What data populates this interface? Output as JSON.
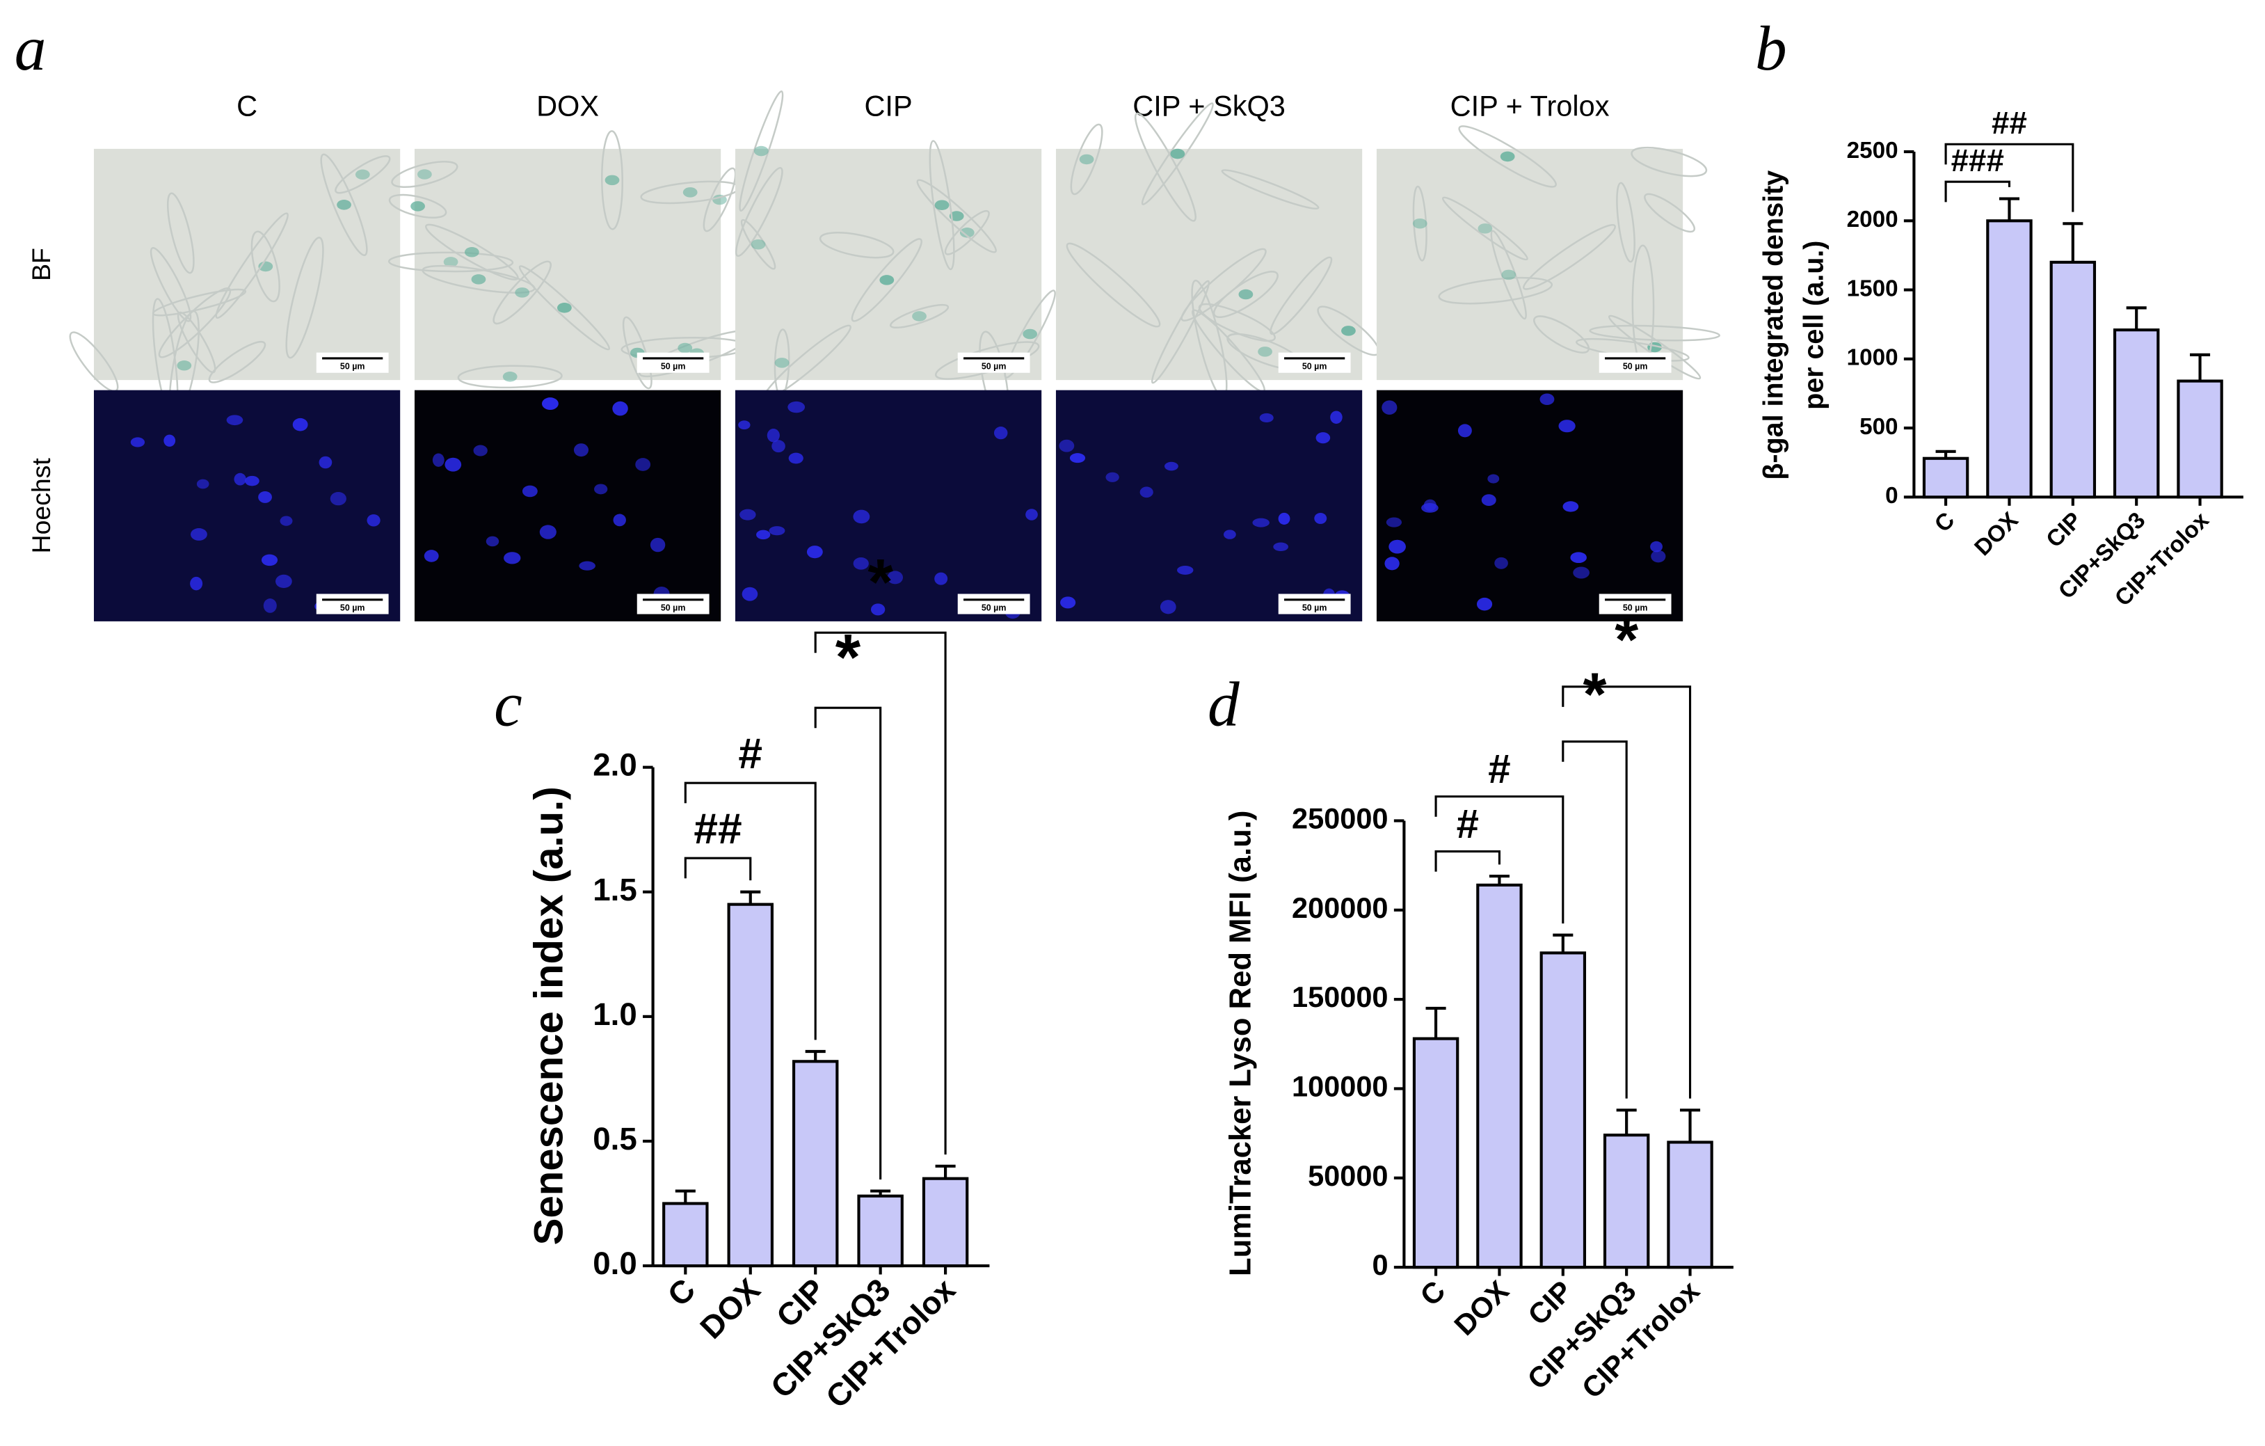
{
  "panel_a": {
    "label": "a",
    "columns": [
      "C",
      "DOX",
      "CIP",
      "CIP + SkQ3",
      "CIP + Trolox"
    ],
    "rows": [
      "BF",
      "Hoechst"
    ],
    "scale_bar": "50 µm"
  },
  "chart_data": [
    {
      "type": "bar",
      "panel_label": "b",
      "ylabel": [
        "β-gal integrated density",
        "per cell (a.u.)"
      ],
      "categories": [
        "C",
        "DOX",
        "CIP",
        "CIP+SkQ3",
        "CIP+Trolox"
      ],
      "values": [
        280,
        2000,
        1700,
        1210,
        840
      ],
      "errors": [
        50,
        160,
        280,
        160,
        190
      ],
      "color": "#c8c8f8",
      "ylim": [
        0,
        2500
      ],
      "yticks": [
        0,
        500,
        1000,
        1500,
        2000,
        2500
      ],
      "significance": [
        {
          "label": "###",
          "from": "C",
          "to": "DOX"
        },
        {
          "label": "##",
          "from": "C",
          "to": "CIP"
        }
      ]
    },
    {
      "type": "bar",
      "panel_label": "c",
      "ylabel": [
        "Senescence index (a.u.)"
      ],
      "categories": [
        "C",
        "DOX",
        "CIP",
        "CIP+SkQ3",
        "CIP+Trolox"
      ],
      "values": [
        0.25,
        1.45,
        0.82,
        0.28,
        0.35
      ],
      "errors": [
        0.05,
        0.05,
        0.04,
        0.02,
        0.05
      ],
      "color": "#c8c8f8",
      "ylim": [
        0,
        2
      ],
      "yticks": [
        {
          "value": 0,
          "label": "0.0"
        },
        0.5,
        {
          "value": 1,
          "label": "1.0"
        },
        1.5,
        {
          "value": 2,
          "label": "2.0"
        }
      ],
      "significance": [
        {
          "label": "##",
          "from": "C",
          "to": "DOX"
        },
        {
          "label": "#",
          "from": "C",
          "to": "CIP"
        },
        {
          "label": "*",
          "from": "CIP",
          "to": "CIP+SkQ3"
        },
        {
          "label": "*",
          "from": "CIP",
          "to": "CIP+Trolox"
        }
      ]
    },
    {
      "type": "bar",
      "panel_label": "d",
      "ylabel": [
        "LumiTracker Lyso Red MFI (a.u.)"
      ],
      "categories": [
        "C",
        "DOX",
        "CIP",
        "CIP+SkQ3",
        "CIP+Trolox"
      ],
      "values": [
        128000,
        214000,
        176000,
        74000,
        70000
      ],
      "errors": [
        17000,
        5000,
        10000,
        14000,
        18000
      ],
      "color": "#c8c8f8",
      "ylim": [
        0,
        250000
      ],
      "yticks": [
        0,
        50000,
        100000,
        150000,
        200000,
        250000
      ],
      "significance": [
        {
          "label": "#",
          "from": "C",
          "to": "DOX"
        },
        {
          "label": "#",
          "from": "C",
          "to": "CIP"
        },
        {
          "label": "*",
          "from": "CIP",
          "to": "CIP+SkQ3"
        },
        {
          "label": "*",
          "from": "CIP",
          "to": "CIP+Trolox"
        }
      ]
    }
  ]
}
